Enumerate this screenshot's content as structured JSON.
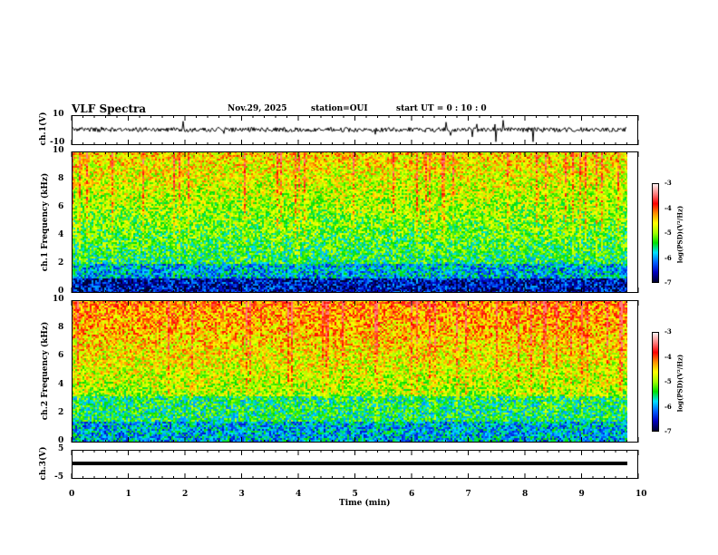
{
  "header": {
    "title": "VLF Spectra",
    "date": "Nov.29, 2025",
    "station": "station=OUI",
    "start": "start  UT =   0  : 10 : 0"
  },
  "chart_data": {
    "type": "heatmap",
    "title": "VLF Spectra",
    "xlabel": "Time  (min)",
    "xlim": [
      0,
      10
    ],
    "xticks": [
      "0",
      "1",
      "2",
      "3",
      "4",
      "5",
      "6",
      "7",
      "8",
      "9",
      "10"
    ],
    "data_time_range_min": [
      0,
      9.8
    ],
    "panels": [
      {
        "name": "ch1 waveform",
        "type": "line",
        "ylabel": "ch.1(V)",
        "ylim": [
          -10,
          10
        ],
        "yticks": [
          "10",
          "-10"
        ],
        "baseline": 0
      },
      {
        "name": "ch1 spectrogram",
        "type": "heatmap",
        "ylabel": "ch.1 Frequency (kHz)",
        "ylim": [
          0,
          10
        ],
        "yticks": [
          "0",
          "2",
          "4",
          "6",
          "8",
          "10"
        ],
        "colorbar": {
          "label": "log(PSD)(V²/Hz)",
          "range": [
            -7,
            -3
          ],
          "ticks": [
            "-3",
            "-4",
            "-5",
            "-6",
            "-7"
          ]
        }
      },
      {
        "name": "ch2 spectrogram",
        "type": "heatmap",
        "ylabel": "ch.2 Frequency (kHz)",
        "ylim": [
          0,
          10
        ],
        "yticks": [
          "0",
          "2",
          "4",
          "6",
          "8",
          "10"
        ],
        "colorbar": {
          "label": "log(PSD)(V²/Hz)",
          "range": [
            -7,
            -3
          ],
          "ticks": [
            "-3",
            "-4",
            "-5",
            "-6",
            "-7"
          ]
        }
      },
      {
        "name": "ch3 waveform",
        "type": "line",
        "ylabel": "ch.3(V)",
        "ylim": [
          -5,
          5
        ],
        "yticks": [
          "5",
          "-5"
        ],
        "baseline": 0
      }
    ]
  }
}
